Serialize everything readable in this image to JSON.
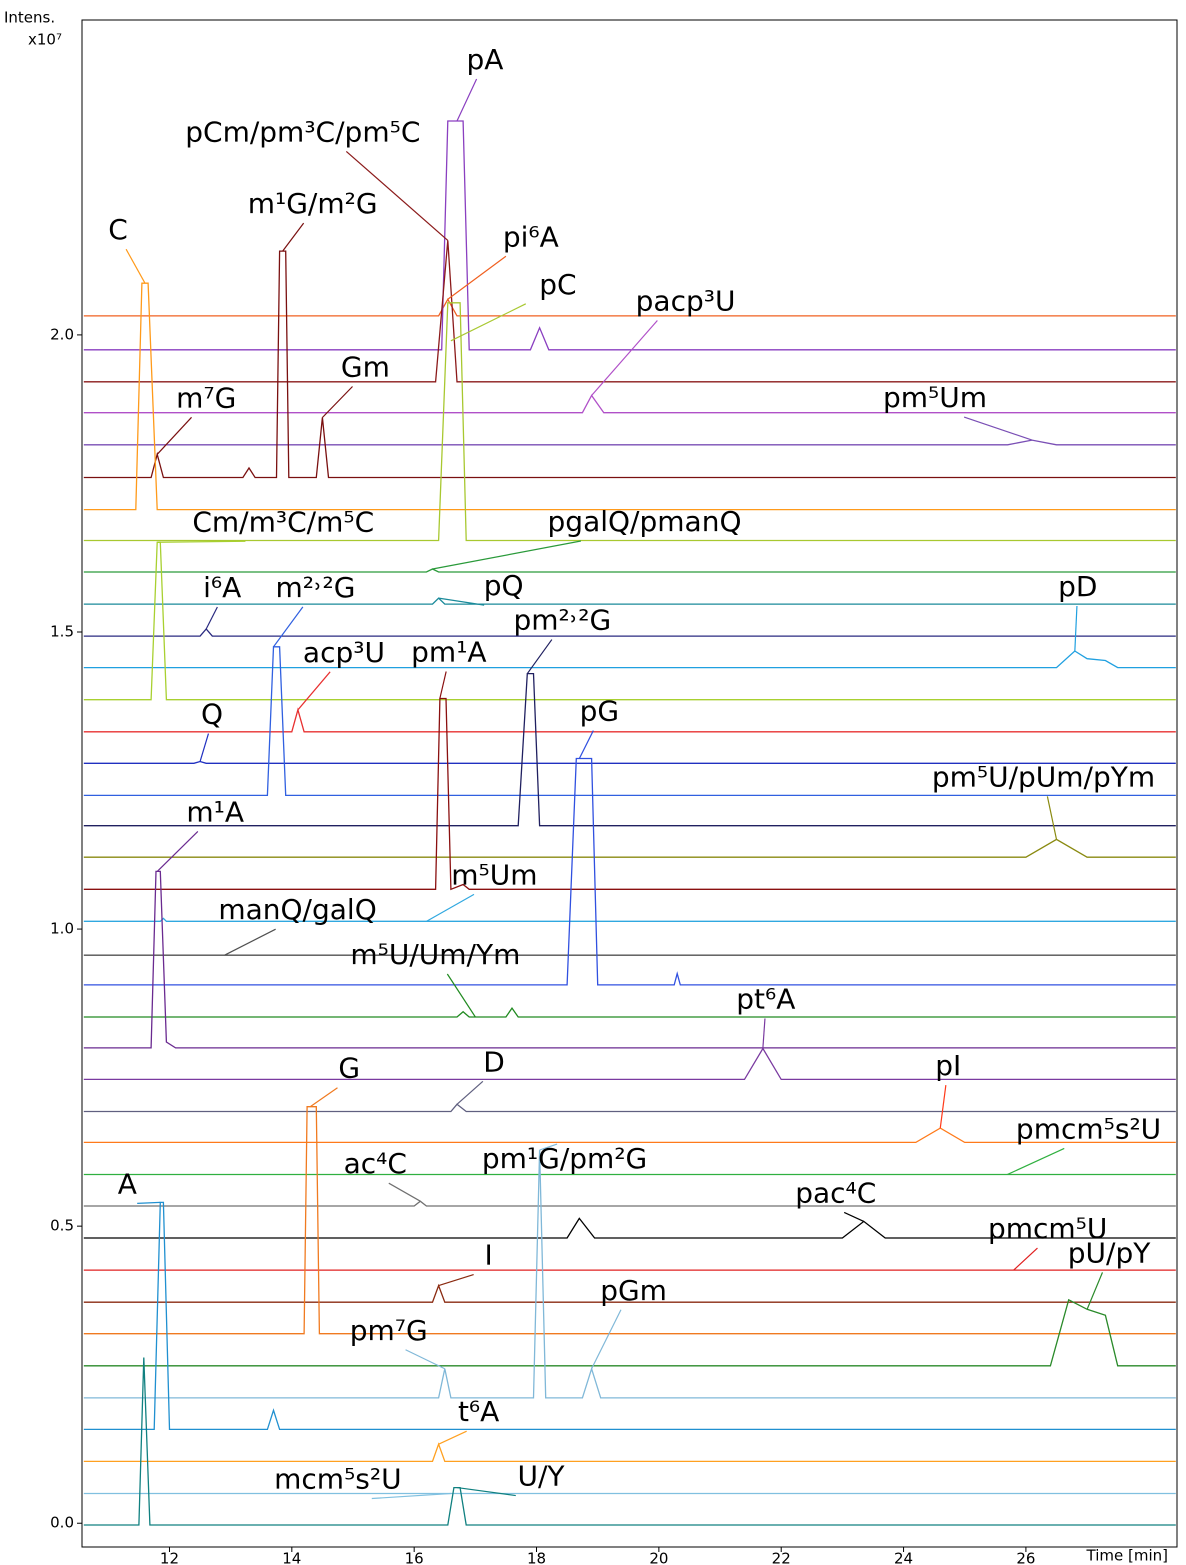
{
  "chart_data": {
    "type": "line",
    "y_label": "Intens.",
    "y_unit": "x10⁷",
    "x_label": "Time [min]",
    "xlim": [
      10.57,
      28.47
    ],
    "ylim": [
      -0.04,
      2.53
    ],
    "xticks": [
      12,
      14,
      16,
      18,
      20,
      22,
      24,
      26
    ],
    "yticks": [
      {
        "value": 0,
        "label": "0.0"
      },
      {
        "value": 0.5,
        "label": "0.5"
      },
      {
        "value": 1,
        "label": "1.0"
      },
      {
        "value": 1.5,
        "label": "1.5"
      },
      {
        "value": 2,
        "label": "2.0"
      }
    ],
    "series": [
      {
        "color": "#f06020",
        "x": [
          10.6,
          16.4,
          16.55,
          16.7,
          28.45
        ],
        "values": [
          2.032,
          2.032,
          2.06,
          2.032,
          2.032
        ]
      },
      {
        "color": "#8a3fc0",
        "x": [
          10.6,
          16.45,
          16.55,
          16.8,
          16.9,
          17.9,
          18.05,
          18.2,
          28.45
        ],
        "values": [
          1.975,
          1.975,
          2.36,
          2.36,
          1.975,
          1.975,
          2.012,
          1.975,
          1.975
        ]
      },
      {
        "color": "#8b1a1a",
        "x": [
          10.6,
          16.35,
          16.55,
          16.7,
          28.45
        ],
        "values": [
          1.921,
          1.921,
          2.159,
          1.921,
          1.921
        ]
      },
      {
        "color": "#b050c8",
        "x": [
          10.6,
          18.75,
          18.9,
          19.1,
          28.45
        ],
        "values": [
          1.869,
          1.869,
          1.898,
          1.869,
          1.869
        ]
      },
      {
        "color": "#7a4fb5",
        "x": [
          10.6,
          25.7,
          26.1,
          26.5,
          28.45
        ],
        "values": [
          1.815,
          1.815,
          1.823,
          1.815,
          1.815
        ]
      },
      {
        "color": "#7a1010",
        "x": [
          10.6,
          11.7,
          11.8,
          11.9,
          13.2,
          13.3,
          13.4,
          13.75,
          13.8,
          13.9,
          13.95,
          14.4,
          14.5,
          14.6,
          28.45
        ],
        "values": [
          1.76,
          1.76,
          1.799,
          1.76,
          1.76,
          1.776,
          1.76,
          1.76,
          2.141,
          2.141,
          1.76,
          1.76,
          1.861,
          1.76,
          1.76
        ]
      },
      {
        "color": "#ff9a1a",
        "x": [
          10.6,
          11.45,
          11.55,
          11.65,
          11.8,
          28.45
        ],
        "values": [
          1.706,
          1.706,
          2.087,
          2.087,
          1.706,
          1.706
        ]
      },
      {
        "color": "#a8c830",
        "x": [
          10.6,
          16.4,
          16.55,
          16.75,
          16.85,
          28.45
        ],
        "values": [
          1.654,
          1.654,
          2.054,
          2.054,
          1.654,
          1.654
        ]
      },
      {
        "color": "#2a9a3a",
        "x": [
          10.6,
          16.2,
          16.3,
          16.4,
          28.45
        ],
        "values": [
          1.601,
          1.601,
          1.606,
          1.601,
          1.601
        ]
      },
      {
        "color": "#1a8a9a",
        "x": [
          10.6,
          16.3,
          16.4,
          16.5,
          28.45
        ],
        "values": [
          1.547,
          1.547,
          1.557,
          1.547,
          1.547
        ]
      },
      {
        "color": "#2a2a80",
        "x": [
          10.6,
          12.5,
          12.6,
          12.7,
          28.45
        ],
        "values": [
          1.493,
          1.493,
          1.505,
          1.493,
          1.493
        ]
      },
      {
        "color": "#20a0e0",
        "x": [
          10.6,
          26.5,
          26.8,
          27.0,
          27.3,
          27.5,
          28.45
        ],
        "values": [
          1.44,
          1.44,
          1.468,
          1.455,
          1.452,
          1.44,
          1.44
        ]
      },
      {
        "color": "#a8d030",
        "x": [
          10.6,
          11.7,
          11.8,
          11.85,
          11.95,
          28.45
        ],
        "values": [
          1.386,
          1.386,
          1.651,
          1.651,
          1.386,
          1.386
        ]
      },
      {
        "color": "#e83030",
        "x": [
          10.6,
          14.0,
          14.1,
          14.2,
          28.45
        ],
        "values": [
          1.332,
          1.332,
          1.369,
          1.332,
          1.332
        ]
      },
      {
        "color": "#2030c0",
        "x": [
          10.6,
          12.4,
          12.5,
          12.6,
          28.45
        ],
        "values": [
          1.279,
          1.279,
          1.282,
          1.279,
          1.279
        ]
      },
      {
        "color": "#3060e0",
        "x": [
          10.6,
          13.6,
          13.7,
          13.8,
          13.9,
          28.45
        ],
        "values": [
          1.225,
          1.225,
          1.475,
          1.475,
          1.225,
          1.225
        ]
      },
      {
        "color": "#202060",
        "x": [
          10.6,
          17.7,
          17.85,
          17.95,
          18.05,
          28.45
        ],
        "values": [
          1.174,
          1.174,
          1.43,
          1.43,
          1.174,
          1.174
        ]
      },
      {
        "color": "#8a8a10",
        "x": [
          10.6,
          26.0,
          26.5,
          27.0,
          28.45
        ],
        "values": [
          1.121,
          1.121,
          1.151,
          1.121,
          1.121
        ]
      },
      {
        "color": "#8a1010",
        "x": [
          10.6,
          16.35,
          16.42,
          16.52,
          16.6,
          16.8,
          16.9,
          28.45
        ],
        "values": [
          1.067,
          1.067,
          1.388,
          1.388,
          1.067,
          1.075,
          1.067,
          1.067
        ]
      },
      {
        "color": "#30a8e0",
        "x": [
          10.6,
          11.85,
          11.9,
          11.95,
          28.45
        ],
        "values": [
          1.013,
          1.013,
          1.018,
          1.013,
          1.013
        ]
      },
      {
        "color": "#505050",
        "x": [
          10.6,
          28.45
        ],
        "values": [
          0.956,
          0.956
        ]
      },
      {
        "color": "#3050e0",
        "x": [
          10.6,
          18.5,
          18.65,
          18.9,
          19.0,
          20.25,
          20.3,
          20.35,
          28.45
        ],
        "values": [
          0.906,
          0.906,
          1.287,
          1.287,
          0.906,
          0.906,
          0.925,
          0.906,
          0.906
        ]
      },
      {
        "color": "#208a20",
        "x": [
          10.6,
          16.7,
          16.8,
          16.9,
          17.5,
          17.6,
          17.7,
          28.45
        ],
        "values": [
          0.852,
          0.852,
          0.861,
          0.852,
          0.852,
          0.867,
          0.852,
          0.852
        ]
      },
      {
        "color": "#6a2a90",
        "x": [
          10.6,
          11.7,
          11.78,
          11.85,
          11.95,
          12.1,
          28.45
        ],
        "values": [
          0.8,
          0.8,
          1.097,
          1.097,
          0.81,
          0.8,
          0.8
        ]
      },
      {
        "color": "#7a3aa0",
        "x": [
          10.6,
          21.4,
          21.7,
          22.0,
          28.45
        ],
        "values": [
          0.747,
          0.747,
          0.799,
          0.747,
          0.747
        ]
      },
      {
        "color": "#606080",
        "x": [
          10.6,
          16.6,
          16.7,
          16.85,
          28.45
        ],
        "values": [
          0.693,
          0.693,
          0.705,
          0.693,
          0.693
        ]
      },
      {
        "color": "#ff7a1a",
        "x": [
          10.6,
          24.2,
          24.6,
          25.0,
          28.45
        ],
        "values": [
          0.641,
          0.641,
          0.665,
          0.641,
          0.641
        ]
      },
      {
        "color": "#30b040",
        "x": [
          10.6,
          28.45
        ],
        "values": [
          0.587,
          0.587
        ]
      },
      {
        "color": "#707070",
        "x": [
          10.6,
          16.0,
          16.1,
          16.2,
          28.45
        ],
        "values": [
          0.534,
          0.534,
          0.542,
          0.534,
          0.534
        ]
      },
      {
        "color": "#000000",
        "x": [
          10.6,
          18.5,
          18.7,
          18.95,
          23.0,
          23.35,
          23.7,
          28.45
        ],
        "values": [
          0.48,
          0.48,
          0.513,
          0.48,
          0.48,
          0.508,
          0.48,
          0.48
        ]
      },
      {
        "color": "#e02020",
        "x": [
          10.6,
          28.45
        ],
        "values": [
          0.426,
          0.426
        ]
      },
      {
        "color": "#8a2a10",
        "x": [
          10.6,
          16.3,
          16.4,
          16.5,
          28.45
        ],
        "values": [
          0.372,
          0.372,
          0.4,
          0.372,
          0.372
        ]
      },
      {
        "color": "#f07a20",
        "x": [
          10.6,
          14.2,
          14.25,
          14.4,
          14.45,
          28.45
        ],
        "values": [
          0.319,
          0.319,
          0.701,
          0.701,
          0.319,
          0.319
        ]
      },
      {
        "color": "#2a8a2a",
        "x": [
          10.6,
          26.4,
          26.7,
          27.0,
          27.3,
          27.5,
          28.45
        ],
        "values": [
          0.265,
          0.265,
          0.376,
          0.36,
          0.35,
          0.265,
          0.265
        ]
      },
      {
        "color": "#80b8d8",
        "x": [
          10.6,
          16.4,
          16.5,
          16.6,
          17.95,
          18.05,
          18.15,
          18.75,
          18.9,
          19.05,
          28.45
        ],
        "values": [
          0.211,
          0.211,
          0.26,
          0.211,
          0.211,
          0.628,
          0.211,
          0.211,
          0.26,
          0.211,
          0.211
        ]
      },
      {
        "color": "#2090d0",
        "x": [
          10.6,
          11.75,
          11.85,
          11.9,
          12.0,
          13.6,
          13.7,
          13.8,
          28.45
        ],
        "values": [
          0.158,
          0.158,
          0.54,
          0.54,
          0.158,
          0.158,
          0.19,
          0.158,
          0.158
        ]
      },
      {
        "color": "#ffa020",
        "x": [
          10.6,
          16.3,
          16.4,
          16.5,
          28.45
        ],
        "values": [
          0.104,
          0.104,
          0.133,
          0.104,
          0.104
        ]
      },
      {
        "color": "#80c0e0",
        "x": [
          10.6,
          28.45
        ],
        "values": [
          0.05,
          0.05
        ]
      },
      {
        "color": "#108080",
        "x": [
          10.6,
          11.5,
          11.58,
          11.68,
          16.55,
          16.65,
          16.75,
          16.85,
          28.45
        ],
        "values": [
          -0.003,
          -0.003,
          0.279,
          -0.003,
          -0.003,
          0.06,
          0.06,
          -0.003,
          -0.003
        ]
      }
    ],
    "annotations": [
      {
        "text": "pA",
        "x": 16.7,
        "y": 2.36,
        "color": "#8a3fc0"
      },
      {
        "text": "pCm/pm³C/pm⁵C",
        "x": 16.55,
        "y": 2.159,
        "color": "#8b1a1a"
      },
      {
        "text": "m¹G/m²G",
        "x": 13.85,
        "y": 2.141,
        "color": "#7a1010"
      },
      {
        "text": "C",
        "x": 11.6,
        "y": 2.087,
        "color": "#ff9a1a"
      },
      {
        "text": "pi⁶A",
        "x": 16.55,
        "y": 2.06,
        "color": "#f06020"
      },
      {
        "text": "pC",
        "x": 16.6,
        "y": 1.99,
        "color": "#a8c830"
      },
      {
        "text": "pacp³U",
        "x": 18.9,
        "y": 1.898,
        "color": "#b050c8"
      },
      {
        "text": "Gm",
        "x": 14.5,
        "y": 1.861,
        "color": "#7a1010"
      },
      {
        "text": "m⁷G",
        "x": 11.8,
        "y": 1.799,
        "color": "#7a1010"
      },
      {
        "text": "pm⁵Um",
        "x": 26.1,
        "y": 1.823,
        "color": "#7a4fb5"
      },
      {
        "text": "Cm/m³C/m⁵C",
        "x": 11.8,
        "y": 1.651,
        "color": "#a8d030"
      },
      {
        "text": "pgalQ/pmanQ",
        "x": 16.3,
        "y": 1.606,
        "color": "#2a9a3a"
      },
      {
        "text": "pQ",
        "x": 16.4,
        "y": 1.557,
        "color": "#1a8a9a"
      },
      {
        "text": "i⁶A",
        "x": 12.6,
        "y": 1.505,
        "color": "#2a2a80"
      },
      {
        "text": "m²˒²G",
        "x": 13.7,
        "y": 1.475,
        "color": "#3060e0"
      },
      {
        "text": "pD",
        "x": 26.8,
        "y": 1.468,
        "color": "#20a0e0"
      },
      {
        "text": "acp³U",
        "x": 14.1,
        "y": 1.369,
        "color": "#e83030"
      },
      {
        "text": "pm¹A",
        "x": 16.42,
        "y": 1.388,
        "color": "#8a1010"
      },
      {
        "text": "pm²˒²G",
        "x": 17.85,
        "y": 1.43,
        "color": "#202060"
      },
      {
        "text": "Q",
        "x": 12.5,
        "y": 1.282,
        "color": "#2030c0"
      },
      {
        "text": "pG",
        "x": 18.7,
        "y": 1.287,
        "color": "#3050e0"
      },
      {
        "text": "pm⁵U/pUm/pYm",
        "x": 26.5,
        "y": 1.151,
        "color": "#8a8a10"
      },
      {
        "text": "m¹A",
        "x": 11.8,
        "y": 1.097,
        "color": "#6a2a90"
      },
      {
        "text": "m⁵Um",
        "x": 16.2,
        "y": 1.013,
        "color": "#30a8e0"
      },
      {
        "text": "manQ/galQ",
        "x": 12.9,
        "y": 0.956,
        "color": "#505050"
      },
      {
        "text": "m⁵U/Um/Ym",
        "x": 17.0,
        "y": 0.852,
        "color": "#208a20"
      },
      {
        "text": "pt⁶A",
        "x": 21.7,
        "y": 0.799,
        "color": "#7a3aa0"
      },
      {
        "text": "G",
        "x": 14.3,
        "y": 0.701,
        "color": "#f07a20"
      },
      {
        "text": "D",
        "x": 16.7,
        "y": 0.705,
        "color": "#606080"
      },
      {
        "text": "pI",
        "x": 24.6,
        "y": 0.665,
        "color": "#ff3a1a"
      },
      {
        "text": "pmcm⁵s²U",
        "x": 25.7,
        "y": 0.587,
        "color": "#30b040"
      },
      {
        "text": "ac⁴C",
        "x": 16.1,
        "y": 0.542,
        "color": "#707070"
      },
      {
        "text": "pm¹G/pm²G",
        "x": 18.05,
        "y": 0.628,
        "color": "#80b8d8"
      },
      {
        "text": "pac⁴C",
        "x": 23.35,
        "y": 0.508,
        "color": "#000000"
      },
      {
        "text": "A",
        "x": 11.85,
        "y": 0.54,
        "color": "#2090d0"
      },
      {
        "text": "pmcm⁵U",
        "x": 25.8,
        "y": 0.426,
        "color": "#e02020"
      },
      {
        "text": "pU/pY",
        "x": 27.0,
        "y": 0.36,
        "color": "#2a8a2a"
      },
      {
        "text": "I",
        "x": 16.4,
        "y": 0.4,
        "color": "#8a2a10"
      },
      {
        "text": "pm⁷G",
        "x": 16.5,
        "y": 0.26,
        "color": "#80b8d8"
      },
      {
        "text": "pGm",
        "x": 18.9,
        "y": 0.26,
        "color": "#80b8d8"
      },
      {
        "text": "t⁶A",
        "x": 16.4,
        "y": 0.133,
        "color": "#ffa020"
      },
      {
        "text": "mcm⁵s²U",
        "x": 16.6,
        "y": 0.05,
        "color": "#80c0e0"
      },
      {
        "text": "U/Y",
        "x": 16.7,
        "y": 0.06,
        "color": "#108080"
      }
    ]
  }
}
